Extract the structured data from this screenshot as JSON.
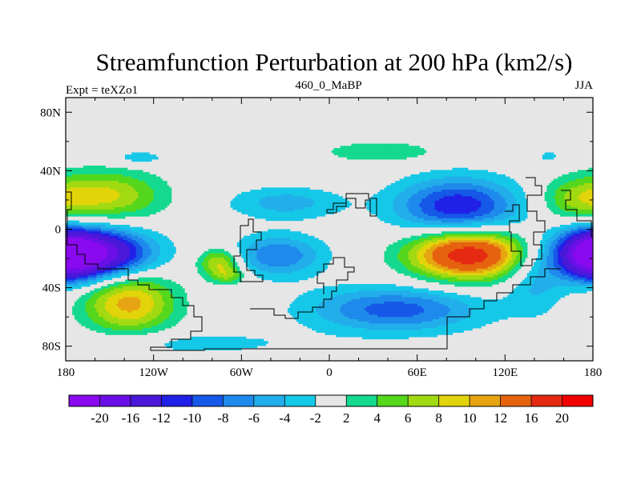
{
  "chart_data": {
    "type": "heatmap",
    "title": "Streamfunction Perturbation at 200 hPa (km2/s)",
    "left_label": "Expt = teXZo1",
    "center_label": "460_0_MaBP",
    "right_label": "JJA",
    "x_range": [
      -180,
      180
    ],
    "y_range": [
      -90,
      90
    ],
    "x_ticks": [
      {
        "value": -180,
        "label": "180"
      },
      {
        "value": -120,
        "label": "120W"
      },
      {
        "value": -60,
        "label": "60W"
      },
      {
        "value": 0,
        "label": "0"
      },
      {
        "value": 60,
        "label": "60E"
      },
      {
        "value": 120,
        "label": "120E"
      },
      {
        "value": 180,
        "label": "180"
      }
    ],
    "y_ticks": [
      {
        "value": 80,
        "label": "80N"
      },
      {
        "value": 40,
        "label": "40N"
      },
      {
        "value": 0,
        "label": "0"
      },
      {
        "value": -40,
        "label": "40S"
      },
      {
        "value": -80,
        "label": "80S"
      }
    ],
    "contour_levels": [
      -20,
      -16,
      -12,
      -10,
      -8,
      -6,
      -4,
      -2,
      2,
      4,
      6,
      8,
      10,
      12,
      16,
      20
    ],
    "colorbar_labels": [
      "-20",
      "-16",
      "-12",
      "-10",
      "-8",
      "-6",
      "-4",
      "-2",
      "2",
      "4",
      "6",
      "8",
      "10",
      "12",
      "16",
      "20"
    ],
    "colors": [
      "#8A0AF0",
      "#6A10E6",
      "#4A18D8",
      "#2020E8",
      "#1658E8",
      "#1E8AEB",
      "#22AEEA",
      "#16C8E8",
      "#E6E6E6",
      "#14D98E",
      "#55D71C",
      "#A2DA12",
      "#E2D40A",
      "#E6A412",
      "#E6620E",
      "#E62A12",
      "#F00000"
    ],
    "anomaly_centers": [
      {
        "lon": -150,
        "lat": 23,
        "value": 8,
        "sx": 26,
        "sy": 12
      },
      {
        "lon": -165,
        "lat": -17,
        "value": -22,
        "sx": 28,
        "sy": 12
      },
      {
        "lon": -137,
        "lat": -50,
        "value": 11,
        "sx": 22,
        "sy": 15
      },
      {
        "lon": -75,
        "lat": -23,
        "value": 9,
        "sx": 10,
        "sy": 7
      },
      {
        "lon": -68,
        "lat": -32,
        "value": 5,
        "sx": 8,
        "sy": 4
      },
      {
        "lon": -35,
        "lat": -18,
        "value": -8,
        "sx": 22,
        "sy": 10
      },
      {
        "lon": 95,
        "lat": -17,
        "value": 19,
        "sx": 28,
        "sy": 12
      },
      {
        "lon": 88,
        "lat": 15,
        "value": -12,
        "sx": 30,
        "sy": 14
      },
      {
        "lon": 45,
        "lat": -55,
        "value": -9,
        "sx": 42,
        "sy": 11
      },
      {
        "lon": -30,
        "lat": 18,
        "value": -5,
        "sx": 28,
        "sy": 8
      },
      {
        "lon": 35,
        "lat": 53,
        "value": 4,
        "sx": 28,
        "sy": 5
      },
      {
        "lon": -130,
        "lat": 49,
        "value": -3.5,
        "sx": 14,
        "sy": 3.5
      },
      {
        "lon": 170,
        "lat": 20,
        "value": 6,
        "sx": 20,
        "sy": 11
      },
      {
        "lon": 180,
        "lat": -17,
        "value": -11,
        "sx": 14,
        "sy": 12
      },
      {
        "lon": 140,
        "lat": -35,
        "value": -4.5,
        "sx": 14,
        "sy": 16
      },
      {
        "lon": 150,
        "lat": 50,
        "value": -3,
        "sx": 5,
        "sy": 3
      },
      {
        "lon": -100,
        "lat": -78,
        "value": -3,
        "sx": 60,
        "sy": 6
      }
    ]
  }
}
